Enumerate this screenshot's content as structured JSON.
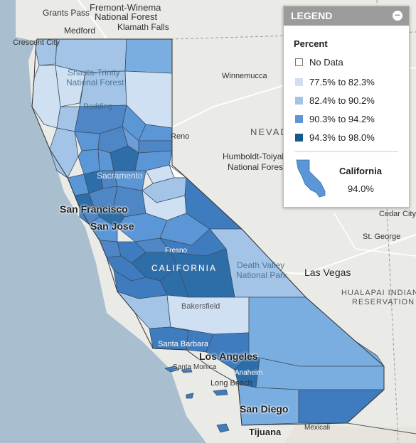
{
  "map": {
    "labels": {
      "grants_pass": "Grants Pass",
      "fremont_winema_1": "Fremont-Winema",
      "fremont_winema_2": "National Forest",
      "medford": "Medford",
      "klamath_falls": "Klamath Falls",
      "crescent_city": "Crescent City",
      "shasta_trinity_1": "Shasta-Trinity",
      "shasta_trinity_2": "National Forest",
      "redding": "Redding",
      "winnemucca": "Winnemucca",
      "nevada": "NEVADA",
      "reno": "Reno",
      "humboldt_1": "Humboldt-Toiyabe",
      "humboldt_2": "National Forest",
      "sacramento": "Sacramento",
      "san_francisco": "San Francisco",
      "san_jose": "San Jose",
      "fresno": "Fresno",
      "california": "CALIFORNIA",
      "death_valley_1": "Death Valley",
      "death_valley_2": "National Park",
      "las_vegas": "Las Vegas",
      "cedar_city": "Cedar City",
      "st_george": "St. George",
      "hualapai_1": "HUALAPAI INDIAN",
      "hualapai_2": "RESERVATION",
      "bakersfield": "Bakersfield",
      "santa_barbara": "Santa Barbara",
      "los_angeles": "Los Angeles",
      "santa_monica": "Santa Monica",
      "anaheim": "Anaheim",
      "long_beach": "Long Beach",
      "san_diego": "San Diego",
      "tijuana": "Tijuana",
      "mexicali": "Mexicali"
    }
  },
  "legend": {
    "title": "LEGEND",
    "collapse_icon": "minus-circle-icon",
    "metric_title": "Percent",
    "items": [
      {
        "label": "No Data",
        "color": "#ffffff"
      },
      {
        "label": "77.5% to 82.3%",
        "color": "#cfe0f3"
      },
      {
        "label": "82.4% to 90.2%",
        "color": "#a3c4e6"
      },
      {
        "label": "90.3% to 94.2%",
        "color": "#5b96d6"
      },
      {
        "label": "94.3% to 98.0%",
        "color": "#145a8a"
      }
    ],
    "state_name": "California",
    "state_value": "94.0%",
    "state_color": "#5b96d6"
  }
}
